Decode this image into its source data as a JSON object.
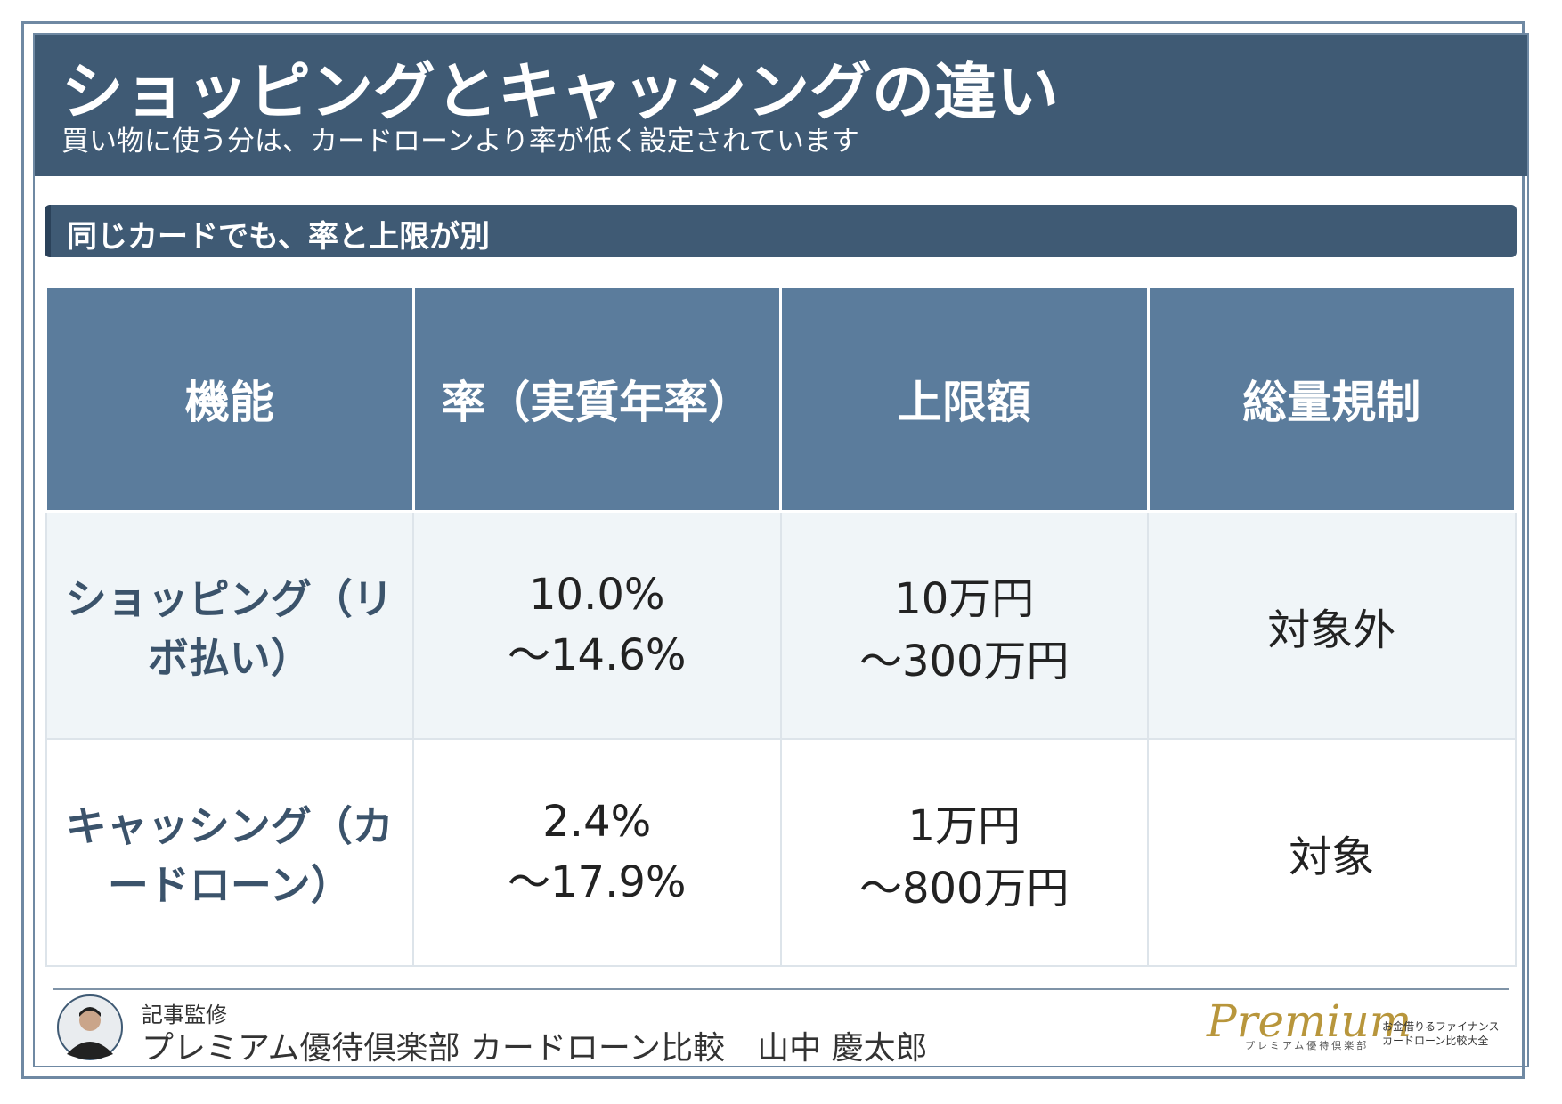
{
  "header": {
    "title": "ショッピングとキャッシングの違い",
    "subtitle": "買い物に使う分は、カードローンより率が低く設定されています"
  },
  "section": {
    "heading": "同じカードでも、率と上限が別"
  },
  "table": {
    "columns": [
      "機能",
      "率（実質年率）",
      "上限額",
      "総量規制"
    ],
    "rows": [
      [
        "ショッピング（リボ払い）",
        [
          "10.0%",
          "〜14.6%"
        ],
        [
          "10万円",
          "〜300万円"
        ],
        "対象外"
      ],
      [
        "キャッシング（カードローン）",
        [
          "2.4%",
          "〜17.9%"
        ],
        [
          "1万円",
          "〜800万円"
        ],
        "対象"
      ]
    ]
  },
  "footer": {
    "label": "記事監修",
    "author": "プレミアム優待倶楽部 カードローン比較　山中 慶太郎",
    "logo": {
      "name": "Premium",
      "sub": "プレミアム優待倶楽部",
      "tagline": [
        "お金借りるファイナンス",
        "カードローン比較大全"
      ]
    }
  }
}
